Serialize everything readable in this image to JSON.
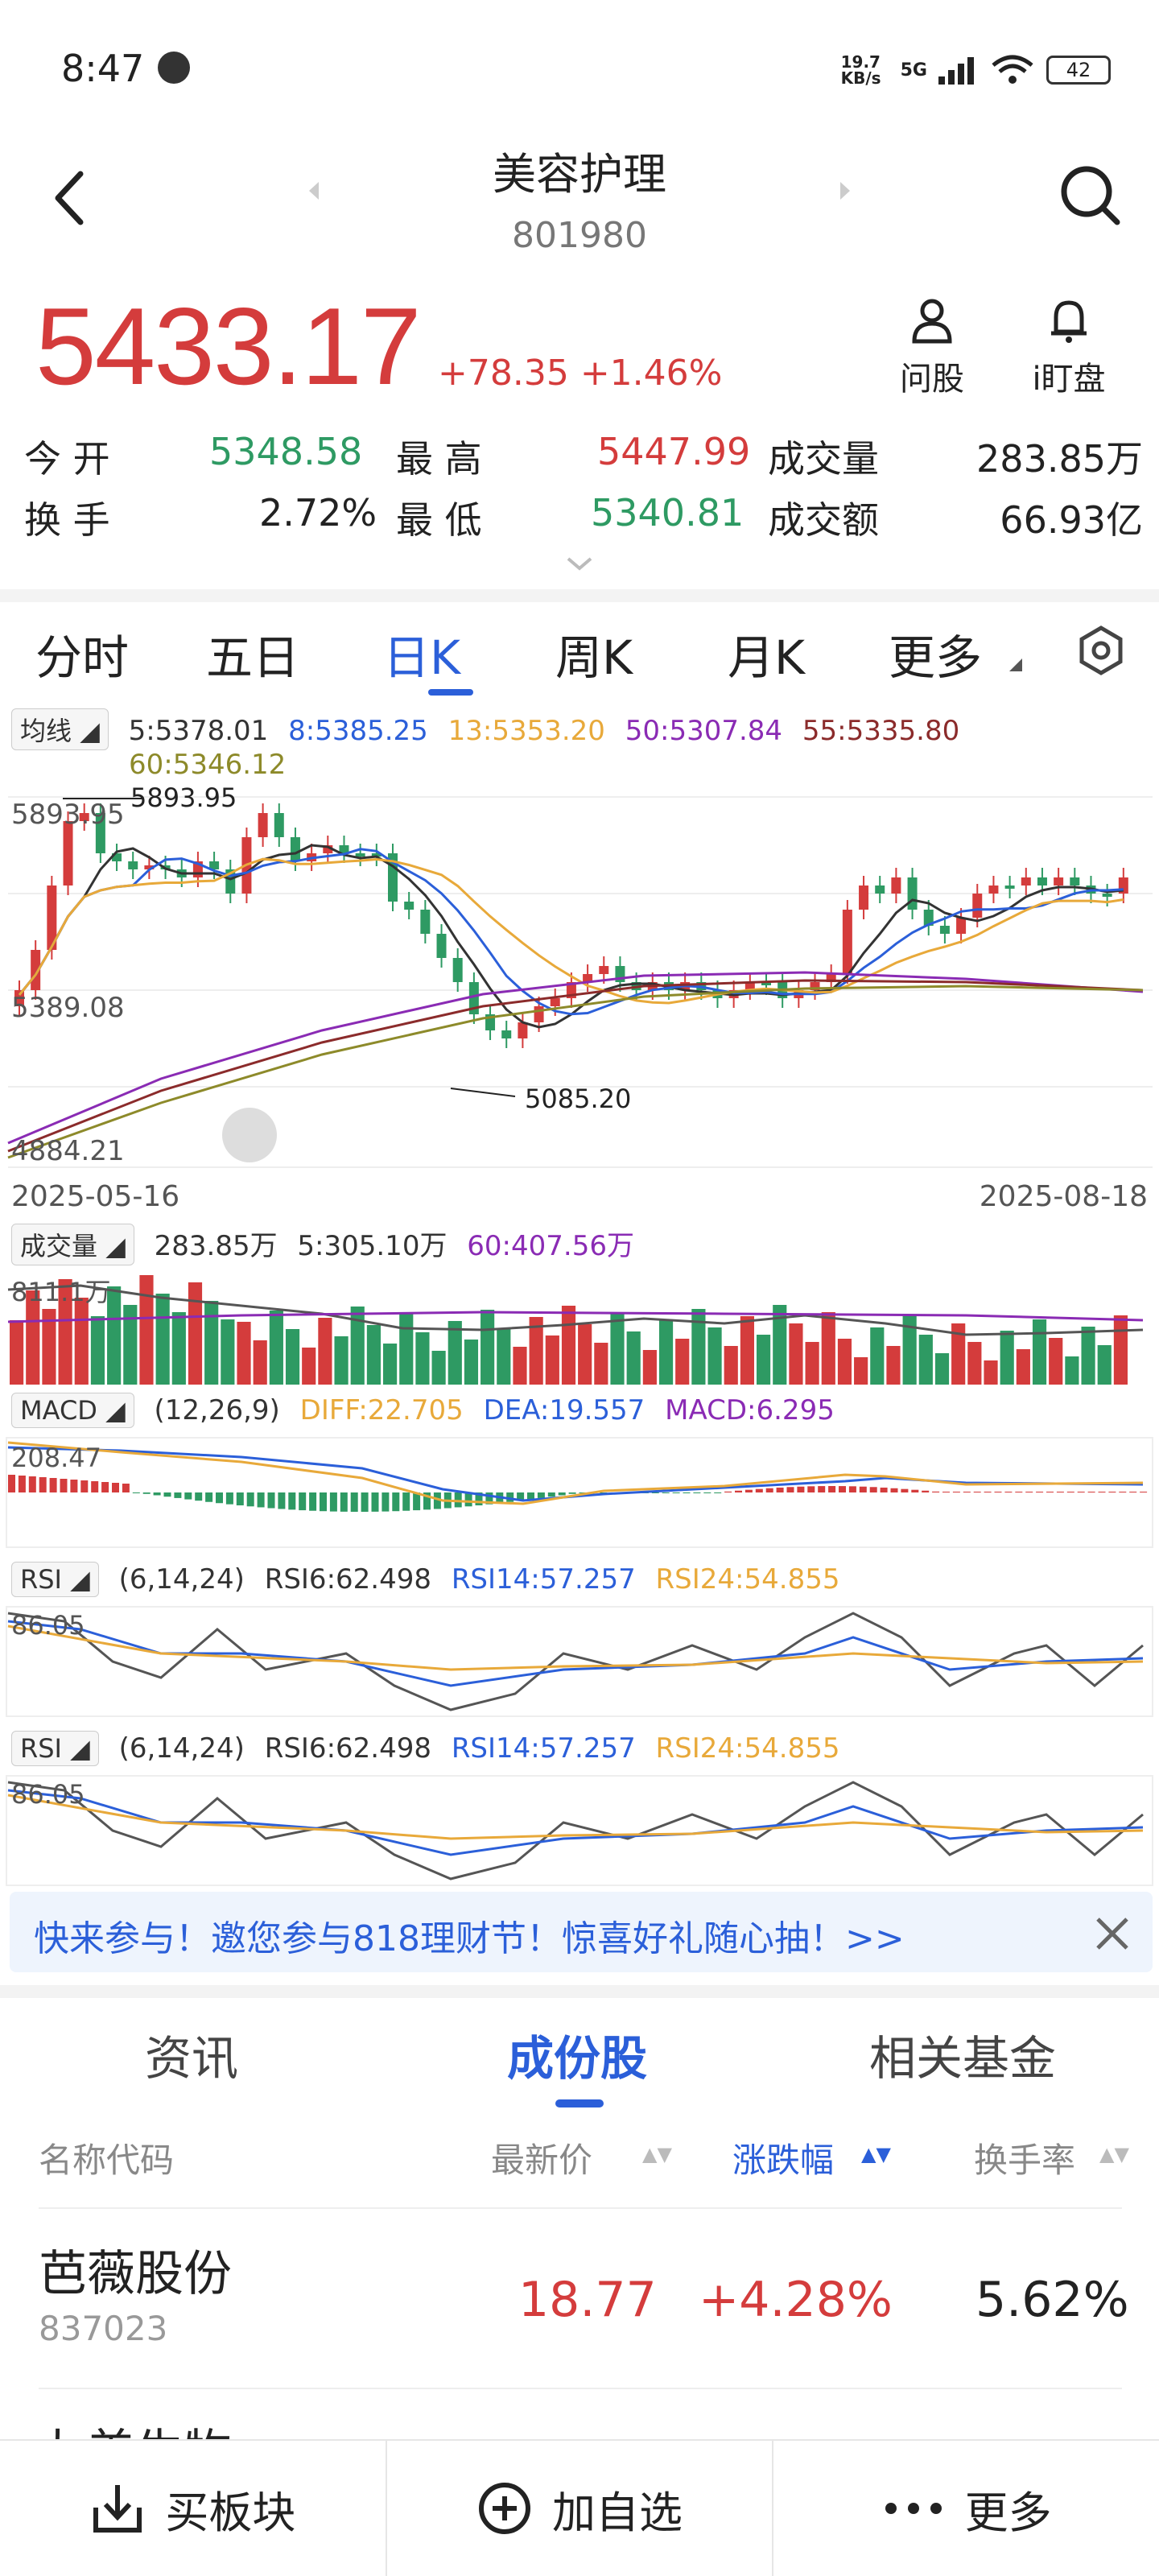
{
  "status": {
    "time": "8:47",
    "speed": "19.7 KB/s",
    "network": "5G",
    "wifi_label": "6",
    "battery": "42"
  },
  "header": {
    "name": "美容护理",
    "code": "801980"
  },
  "quote": {
    "price": "5433.17",
    "change": "+78.35 +1.46%",
    "ask_label": "问股",
    "watch_label": "i盯盘",
    "open_label": "今 开",
    "open": "5348.58",
    "high_label": "最 高",
    "high": "5447.99",
    "volume_label": "成交量",
    "volume": "283.85万",
    "turnover_label": "换 手",
    "turnover": "2.72%",
    "low_label": "最 低",
    "low": "5340.81",
    "amount_label": "成交额",
    "amount": "66.93亿"
  },
  "tabs": [
    "分时",
    "五日",
    "日K",
    "周K",
    "月K",
    "更多"
  ],
  "ma": {
    "pill": "均线",
    "ma5": "5:5378.01",
    "ma8": "8:5385.25",
    "ma13": "13:5353.20",
    "ma50": "50:5307.84",
    "ma55": "55:5335.80",
    "ma60": "60:5346.12"
  },
  "kline": {
    "top_label": "5893.95",
    "high_mark": "5893.95",
    "mid_label": "5389.08",
    "low_mark": "5085.20",
    "bottom_label": "4884.21",
    "start_date": "2025-05-16",
    "end_date": "2025-08-18"
  },
  "vol": {
    "pill": "成交量",
    "total": "283.85万",
    "ma5": "5:305.10万",
    "ma60": "60:407.56万",
    "axis": "811.1万"
  },
  "macd": {
    "pill": "MACD",
    "params": "(12,26,9)",
    "diff": "DIFF:22.705",
    "dea": "DEA:19.557",
    "macd": "MACD:6.295",
    "axis": "208.47"
  },
  "rsi": {
    "pill": "RSI",
    "params": "(6,14,24)",
    "rsi6": "RSI6:62.498",
    "rsi14": "RSI14:57.257",
    "rsi24": "RSI24:54.855",
    "axis": "86.05"
  },
  "promo": {
    "text": "快来参与！邀您参与818理财节！惊喜好礼随心抽！>>"
  },
  "bottom_tabs": [
    "资讯",
    "成份股",
    "相关基金"
  ],
  "table": {
    "headers": [
      "名称代码",
      "最新价",
      "涨跌幅",
      "换手率"
    ],
    "row": {
      "name": "芭薇股份",
      "code": "837023",
      "price": "18.77",
      "change": "+4.28%",
      "turnover": "5.62%"
    },
    "next_row_partial": "九美生物"
  },
  "bottom_bar": {
    "buy": "买板块",
    "add": "加自选",
    "more": "更多"
  },
  "colors": {
    "up": "#d43c3c",
    "down": "#2e9a63",
    "accent": "#2b5fd9"
  }
}
